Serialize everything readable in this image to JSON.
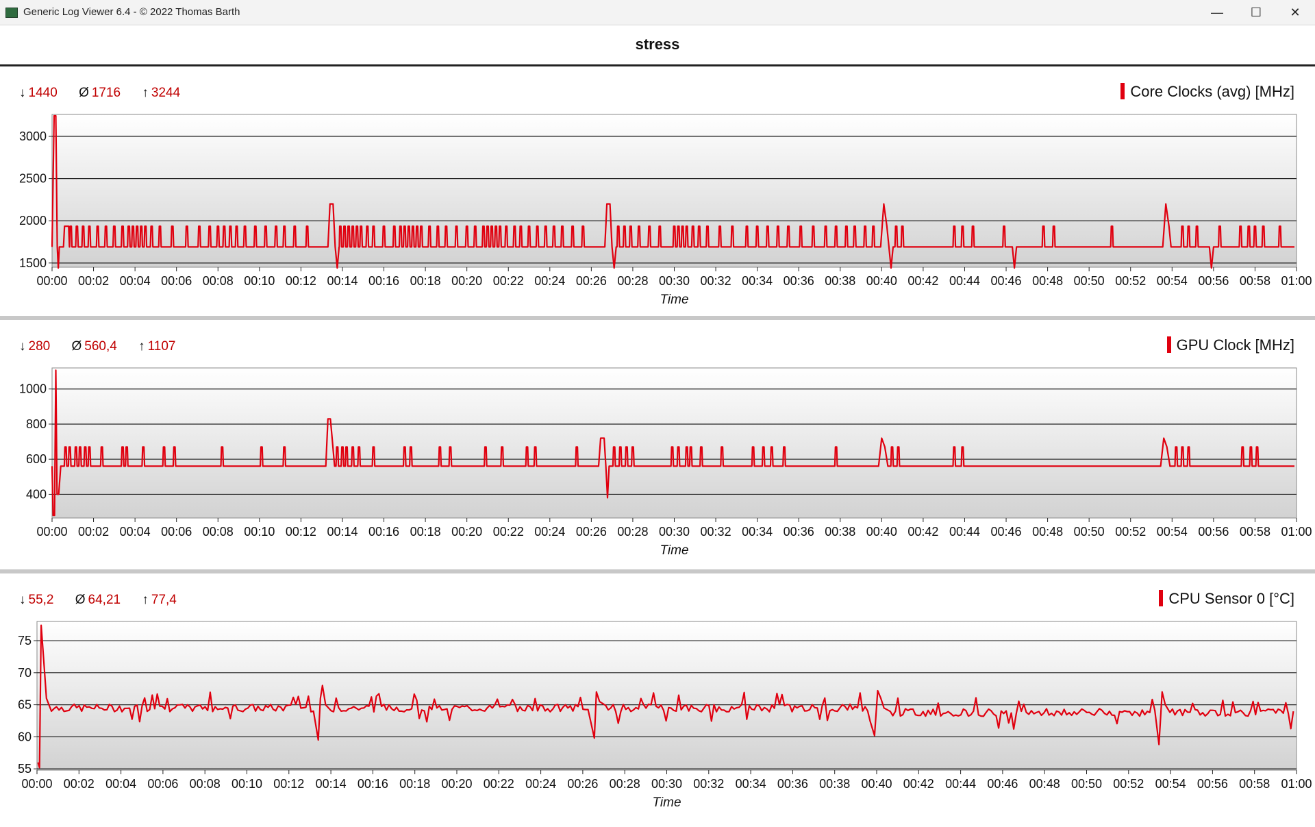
{
  "window": {
    "title": "Generic Log Viewer 6.4 - © 2022 Thomas Barth",
    "minimize_glyph": "—",
    "maximize_glyph": "☐",
    "close_glyph": "✕"
  },
  "document": {
    "title": "stress"
  },
  "panels": [
    {
      "legend": "Core Clocks (avg) [MHz]",
      "stats": {
        "min_symbol": "↓",
        "min": "1440",
        "avg_symbol": "Ø",
        "avg": "1716",
        "max_symbol": "↑",
        "max": "3244"
      },
      "chart_data": {
        "type": "line",
        "title": "",
        "xlabel": "Time",
        "ylabel": "",
        "x_ticks": [
          "00:00",
          "00:02",
          "00:04",
          "00:06",
          "00:08",
          "00:10",
          "00:12",
          "00:14",
          "00:16",
          "00:18",
          "00:20",
          "00:22",
          "00:24",
          "00:26",
          "00:28",
          "00:30",
          "00:32",
          "00:34",
          "00:36",
          "00:38",
          "00:40",
          "00:42",
          "00:44",
          "00:46",
          "00:48",
          "00:50",
          "00:52",
          "00:54",
          "00:56",
          "00:58",
          "01:00"
        ],
        "xlim_minutes": [
          0,
          60
        ],
        "y_ticks": [
          1500,
          2000,
          2500,
          3000
        ],
        "ylim": [
          1450,
          3260
        ],
        "grid": "horizontal",
        "series": [
          {
            "color": "#e0000f",
            "baseline": 1690,
            "spike_value": 1935,
            "points": [
              [
                0.0,
                1690
              ],
              [
                0.1,
                3244
              ],
              [
                0.18,
                3244
              ],
              [
                0.25,
                1690
              ],
              [
                0.3,
                1440
              ],
              [
                0.35,
                1690
              ],
              [
                0.55,
                1690
              ],
              [
                0.6,
                1935
              ],
              [
                0.8,
                1935
              ],
              [
                0.85,
                1690
              ],
              [
                13.3,
                1690
              ],
              [
                13.4,
                2200
              ],
              [
                13.55,
                2200
              ],
              [
                13.65,
                1690
              ],
              [
                13.75,
                1440
              ],
              [
                13.85,
                1690
              ],
              [
                26.65,
                1690
              ],
              [
                26.75,
                2200
              ],
              [
                26.9,
                2200
              ],
              [
                27.0,
                1690
              ],
              [
                27.1,
                1440
              ],
              [
                27.2,
                1690
              ],
              [
                39.95,
                1690
              ],
              [
                40.1,
                2200
              ],
              [
                40.25,
                1935
              ],
              [
                40.35,
                1690
              ],
              [
                40.45,
                1440
              ],
              [
                40.55,
                1690
              ],
              [
                46.3,
                1690
              ],
              [
                46.4,
                1440
              ],
              [
                46.5,
                1690
              ],
              [
                53.55,
                1690
              ],
              [
                53.7,
                2200
              ],
              [
                53.85,
                1935
              ],
              [
                53.95,
                1690
              ],
              [
                55.8,
                1690
              ],
              [
                55.9,
                1440
              ],
              [
                56.0,
                1690
              ],
              [
                59.9,
                1690
              ]
            ],
            "spikes_at_minutes": [
              0.9,
              1.2,
              1.5,
              1.8,
              2.2,
              2.6,
              3.0,
              3.4,
              3.7,
              3.9,
              4.1,
              4.3,
              4.5,
              4.8,
              5.2,
              5.8,
              6.5,
              7.1,
              7.6,
              8.0,
              8.3,
              8.6,
              8.9,
              9.3,
              9.8,
              10.3,
              10.8,
              11.2,
              11.7,
              12.3,
              13.9,
              14.1,
              14.3,
              14.5,
              14.7,
              14.9,
              15.2,
              15.5,
              16.0,
              16.5,
              16.8,
              17.0,
              17.2,
              17.4,
              17.6,
              17.8,
              18.2,
              18.6,
              19.0,
              19.5,
              20.0,
              20.4,
              20.8,
              21.0,
              21.2,
              21.4,
              21.6,
              21.9,
              22.3,
              22.6,
              23.0,
              23.4,
              23.8,
              24.2,
              24.6,
              25.1,
              25.6,
              27.3,
              27.6,
              27.9,
              28.3,
              28.8,
              29.3,
              30.0,
              30.2,
              30.4,
              30.6,
              30.9,
              31.2,
              31.6,
              32.2,
              32.8,
              33.5,
              34.0,
              34.5,
              35.0,
              35.5,
              36.1,
              36.7,
              37.3,
              37.8,
              38.3,
              38.7,
              39.2,
              39.6,
              40.7,
              41.0,
              43.5,
              43.9,
              44.4,
              45.9,
              47.8,
              48.3,
              51.1,
              54.5,
              54.8,
              55.2,
              56.3,
              57.3,
              57.7,
              58.0,
              58.4,
              59.2
            ]
          }
        ]
      }
    },
    {
      "legend": "GPU Clock [MHz]",
      "stats": {
        "min_symbol": "↓",
        "min": "280",
        "avg_symbol": "Ø",
        "avg": "560,4",
        "max_symbol": "↑",
        "max": "1107"
      },
      "chart_data": {
        "type": "line",
        "title": "",
        "xlabel": "Time",
        "ylabel": "",
        "x_ticks": [
          "00:00",
          "00:02",
          "00:04",
          "00:06",
          "00:08",
          "00:10",
          "00:12",
          "00:14",
          "00:16",
          "00:18",
          "00:20",
          "00:22",
          "00:24",
          "00:26",
          "00:28",
          "00:30",
          "00:32",
          "00:34",
          "00:36",
          "00:38",
          "00:40",
          "00:42",
          "00:44",
          "00:46",
          "00:48",
          "00:50",
          "00:52",
          "00:54",
          "00:56",
          "00:58",
          "01:00"
        ],
        "xlim_minutes": [
          0,
          60
        ],
        "y_ticks": [
          400,
          600,
          800,
          1000
        ],
        "ylim": [
          265,
          1120
        ],
        "grid": "horizontal",
        "series": [
          {
            "color": "#e0000f",
            "baseline": 560,
            "spike_value": 670,
            "points": [
              [
                0.0,
                560
              ],
              [
                0.05,
                280
              ],
              [
                0.12,
                280
              ],
              [
                0.18,
                1107
              ],
              [
                0.24,
                400
              ],
              [
                0.32,
                400
              ],
              [
                0.42,
                560
              ],
              [
                13.2,
                560
              ],
              [
                13.3,
                830
              ],
              [
                13.42,
                830
              ],
              [
                13.52,
                700
              ],
              [
                13.62,
                560
              ],
              [
                26.35,
                560
              ],
              [
                26.45,
                720
              ],
              [
                26.62,
                720
              ],
              [
                26.7,
                560
              ],
              [
                26.78,
                380
              ],
              [
                26.86,
                560
              ],
              [
                39.85,
                560
              ],
              [
                40.0,
                720
              ],
              [
                40.15,
                670
              ],
              [
                40.3,
                560
              ],
              [
                53.45,
                560
              ],
              [
                53.6,
                720
              ],
              [
                53.75,
                670
              ],
              [
                53.9,
                560
              ],
              [
                59.9,
                560
              ]
            ],
            "spikes_at_minutes": [
              0.65,
              0.85,
              1.15,
              1.35,
              1.6,
              1.8,
              2.4,
              3.4,
              3.6,
              4.4,
              5.4,
              5.9,
              8.2,
              10.1,
              11.2,
              13.75,
              14.0,
              14.2,
              14.5,
              14.8,
              15.5,
              17.0,
              17.3,
              18.7,
              19.2,
              20.9,
              21.7,
              22.9,
              23.3,
              25.3,
              27.1,
              27.4,
              27.7,
              28.0,
              29.9,
              30.2,
              30.6,
              30.8,
              31.3,
              32.3,
              33.8,
              34.3,
              34.7,
              35.3,
              37.8,
              40.5,
              40.8,
              43.5,
              43.9,
              54.2,
              54.5,
              54.8,
              57.4,
              57.8,
              58.1
            ]
          }
        ]
      }
    },
    {
      "legend": "CPU Sensor 0 [°C]",
      "stats": {
        "min_symbol": "↓",
        "min": "55,2",
        "avg_symbol": "Ø",
        "avg": "64,21",
        "max_symbol": "↑",
        "max": "77,4"
      },
      "chart_data": {
        "type": "line",
        "title": "",
        "xlabel": "Time",
        "ylabel": "",
        "x_ticks": [
          "00:00",
          "00:02",
          "00:04",
          "00:06",
          "00:08",
          "00:10",
          "00:12",
          "00:14",
          "00:16",
          "00:18",
          "00:20",
          "00:22",
          "00:24",
          "00:26",
          "00:28",
          "00:30",
          "00:32",
          "00:34",
          "00:36",
          "00:38",
          "00:40",
          "00:42",
          "00:44",
          "00:46",
          "00:48",
          "00:50",
          "00:52",
          "00:54",
          "00:56",
          "00:58",
          "01:00"
        ],
        "xlim_minutes": [
          0,
          60
        ],
        "y_ticks": [
          55,
          60,
          65,
          70,
          75
        ],
        "ylim": [
          54.8,
          78
        ],
        "grid": "horizontal",
        "series": [
          {
            "color": "#e0000f",
            "noise_base_early": 64.5,
            "noise_base_late": 63.8,
            "noise_amplitude": 1.2,
            "events": [
              [
                0.05,
                56.0
              ],
              [
                0.12,
                55.2
              ],
              [
                0.2,
                77.4
              ],
              [
                0.32,
                72.0
              ],
              [
                0.45,
                66.0
              ],
              [
                13.4,
                59.5
              ],
              [
                13.5,
                66.0
              ],
              [
                13.6,
                68.0
              ],
              [
                13.75,
                65.0
              ],
              [
                26.55,
                59.8
              ],
              [
                26.65,
                67.0
              ],
              [
                26.8,
                65.5
              ],
              [
                39.9,
                60.2
              ],
              [
                40.05,
                67.2
              ],
              [
                40.2,
                66.0
              ],
              [
                40.35,
                64.5
              ],
              [
                53.45,
                58.8
              ],
              [
                53.6,
                67.0
              ],
              [
                53.75,
                65.0
              ]
            ]
          }
        ]
      }
    }
  ],
  "x_axis_title": "Time"
}
